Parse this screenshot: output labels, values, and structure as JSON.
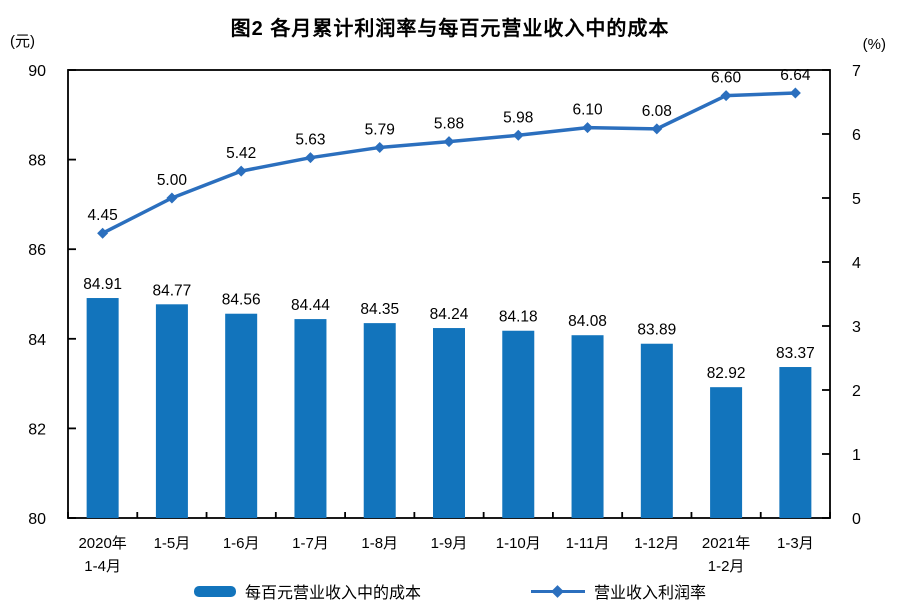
{
  "chart": {
    "title": "图2 各月累计利润率与每百元营业收入中的成本",
    "left_axis": {
      "unit": "(元)",
      "min": 80,
      "max": 90,
      "tick_step": 2,
      "ticks": [
        "90",
        "88",
        "86",
        "84",
        "82",
        "80"
      ]
    },
    "right_axis": {
      "unit": "(%)",
      "min": 0,
      "max": 7,
      "tick_step": 1,
      "ticks": [
        "7",
        "6",
        "5",
        "4",
        "3",
        "2",
        "1",
        "0"
      ]
    },
    "legend": {
      "bar_label": "每百元营业收入中的成本",
      "line_label": "营业收入利润率"
    },
    "colors": {
      "bar": "#1274BC",
      "line": "#2B6FBE",
      "axis": "#000000",
      "text": "#000000"
    }
  },
  "chart_data": {
    "type": "bar+line",
    "title": "图2 各月累计利润率与每百元营业收入中的成本",
    "categories": [
      "2020年\n1-4月",
      "1-5月",
      "1-6月",
      "1-7月",
      "1-8月",
      "1-9月",
      "1-10月",
      "1-11月",
      "1-12月",
      "2021年\n1-2月",
      "1-3月"
    ],
    "series": [
      {
        "name": "每百元营业收入中的成本",
        "type": "bar",
        "axis": "left",
        "values": [
          84.91,
          84.77,
          84.56,
          84.44,
          84.35,
          84.24,
          84.18,
          84.08,
          83.89,
          82.92,
          83.37
        ],
        "labels": [
          "84.91",
          "84.77",
          "84.56",
          "84.44",
          "84.35",
          "84.24",
          "84.18",
          "84.08",
          "83.89",
          "82.92",
          "83.37"
        ]
      },
      {
        "name": "营业收入利润率",
        "type": "line",
        "axis": "right",
        "values": [
          4.45,
          5.0,
          5.42,
          5.63,
          5.79,
          5.88,
          5.98,
          6.1,
          6.08,
          6.6,
          6.64
        ],
        "labels": [
          "4.45",
          "5.00",
          "5.42",
          "5.63",
          "5.79",
          "5.88",
          "5.98",
          "6.10",
          "6.08",
          "6.60",
          "6.64"
        ]
      }
    ],
    "left_ylim": [
      80,
      90
    ],
    "right_ylim": [
      0,
      7
    ],
    "grid": false,
    "legend_position": "bottom"
  }
}
